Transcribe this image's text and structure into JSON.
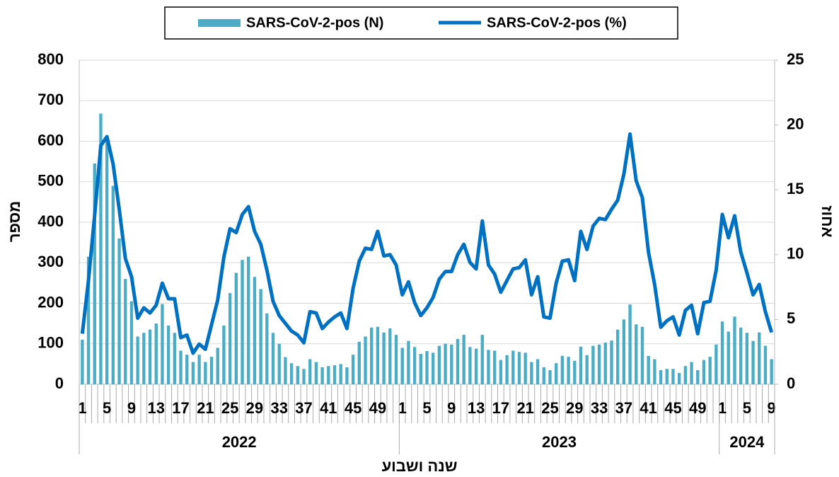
{
  "chart_data": {
    "type": "bar-line",
    "y_label": "מספר",
    "y2_label": "אחוז",
    "x_label": "שנה ושבוע",
    "categories": [
      "1",
      null,
      null,
      null,
      "5",
      null,
      null,
      null,
      "9",
      null,
      null,
      null,
      "13",
      null,
      null,
      null,
      "17",
      null,
      null,
      null,
      "21",
      null,
      null,
      null,
      "25",
      null,
      null,
      null,
      "29",
      null,
      null,
      null,
      "33",
      null,
      null,
      null,
      "37",
      null,
      null,
      null,
      "41",
      null,
      null,
      null,
      "45",
      null,
      null,
      null,
      "49",
      null,
      null,
      null,
      "1",
      null,
      null,
      null,
      "5",
      null,
      null,
      null,
      "9",
      null,
      null,
      null,
      "13",
      null,
      null,
      null,
      "17",
      null,
      null,
      null,
      "21",
      null,
      null,
      null,
      "25",
      null,
      null,
      null,
      "29",
      null,
      null,
      null,
      "33",
      null,
      null,
      null,
      "37",
      null,
      null,
      null,
      "41",
      null,
      null,
      null,
      "45",
      null,
      null,
      null,
      "49",
      null,
      null,
      null,
      "1",
      null,
      null,
      null,
      "5",
      null,
      null,
      null,
      "9"
    ],
    "groups": [
      "2022",
      "2023",
      "2024"
    ],
    "series": [
      {
        "name": "SARS-CoV-2-pos (N)",
        "type": "bar",
        "color": "#4bacc6",
        "values": [
          110,
          315,
          545,
          668,
          600,
          490,
          360,
          260,
          205,
          118,
          127,
          135,
          150,
          198,
          145,
          127,
          83,
          73,
          55,
          73,
          55,
          68,
          90,
          145,
          225,
          275,
          307,
          315,
          265,
          235,
          175,
          127,
          100,
          67,
          52,
          45,
          38,
          62,
          55,
          42,
          45,
          47,
          50,
          42,
          73,
          105,
          118,
          140,
          142,
          128,
          138,
          122,
          90,
          107,
          92,
          75,
          82,
          78,
          95,
          100,
          98,
          112,
          122,
          92,
          88,
          122,
          85,
          83,
          60,
          72,
          83,
          80,
          78,
          55,
          62,
          42,
          35,
          52,
          70,
          68,
          58,
          93,
          72,
          95,
          98,
          103,
          108,
          135,
          160,
          197,
          148,
          142,
          70,
          62,
          35,
          38,
          38,
          28,
          45,
          55,
          35,
          60,
          68,
          98,
          155,
          130,
          167,
          140,
          127,
          107,
          128,
          95,
          62
        ]
      },
      {
        "name": "SARS-CoV-2-pos (%)",
        "type": "line",
        "axis": "y2",
        "color": "#0070c0",
        "values": [
          3.9,
          8,
          13,
          18.4,
          19.1,
          17,
          13.5,
          9.7,
          8.3,
          5.1,
          5.9,
          5.5,
          6.1,
          7.8,
          6.6,
          6.6,
          3.6,
          3.8,
          2.4,
          3.1,
          2.7,
          4.6,
          6.5,
          9.8,
          12,
          11.7,
          13.1,
          13.7,
          11.8,
          10.8,
          8.8,
          6.4,
          5.3,
          4.7,
          4.1,
          3.8,
          3.2,
          5.6,
          5.5,
          4.3,
          4.8,
          5.2,
          5.5,
          4.3,
          7.4,
          9.5,
          10.5,
          10.4,
          11.8,
          9.9,
          10,
          9.2,
          6.9,
          7.9,
          6.3,
          5.3,
          5.9,
          6.7,
          8.1,
          8.7,
          8.7,
          10,
          10.8,
          9.4,
          8.9,
          12.6,
          9.2,
          8.5,
          7.1,
          8,
          8.9,
          9,
          9.6,
          6.9,
          8.3,
          5.2,
          5.1,
          7.8,
          9.5,
          9.6,
          8,
          11.8,
          10.4,
          12.2,
          12.8,
          12.7,
          13.5,
          14.2,
          16.2,
          19.3,
          15.7,
          14.4,
          10.2,
          7.7,
          4.4,
          4.9,
          5.2,
          3.8,
          5.7,
          6.1,
          3.9,
          6.3,
          6.4,
          8.8,
          13.1,
          11.3,
          13,
          10.2,
          8.6,
          6.9,
          7.7,
          5.6,
          4
        ]
      }
    ],
    "ylim": [
      0,
      800
    ],
    "yticks": [
      0,
      100,
      200,
      300,
      400,
      500,
      600,
      700,
      800
    ],
    "y2lim": [
      0,
      25
    ],
    "y2ticks": [
      0,
      5,
      10,
      15,
      20,
      25
    ],
    "grid": true,
    "legend": "top"
  }
}
